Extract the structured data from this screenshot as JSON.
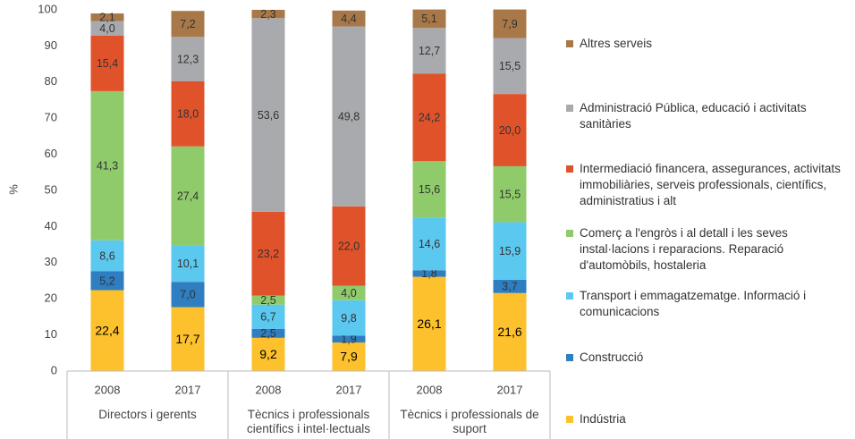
{
  "chart_data": {
    "type": "stacked_bar",
    "y_label": "%",
    "categories": [
      "2008",
      "2017",
      "2008",
      "2017",
      "2008",
      "2017"
    ],
    "groups": [
      "Directors i gerents",
      "Tècnics i professionals científics i intel·lectuals",
      "Tècnics i professionals de suport"
    ],
    "ylim": [
      0,
      100
    ],
    "yticks": [
      0,
      10,
      20,
      30,
      40,
      50,
      60,
      70,
      80,
      90,
      100
    ],
    "grid": false,
    "legend": "right",
    "series": [
      {
        "name": "Indústria",
        "color": "#fcc12d",
        "values": [
          22.4,
          17.7,
          9.2,
          7.9,
          26.1,
          21.6
        ],
        "value_labels": [
          "22,4",
          "17,7",
          "9,2",
          "7,9",
          "26,1",
          "21,6"
        ]
      },
      {
        "name": "Construcció",
        "color": "#2e7ec1",
        "values": [
          5.2,
          7.0,
          2.5,
          1.9,
          1.8,
          3.7
        ],
        "value_labels": [
          "5,2",
          "7,0",
          "2,5",
          "1,9",
          "1,8",
          "3,7"
        ]
      },
      {
        "name": "Transport i emmagatzematge. Informació i comunicacions",
        "color": "#5bc8f0",
        "values": [
          8.6,
          10.1,
          6.7,
          9.8,
          14.6,
          15.9
        ],
        "value_labels": [
          "8,6",
          "10,1",
          "6,7",
          "9,8",
          "14,6",
          "15,9"
        ]
      },
      {
        "name": "Comerç a l'engròs i al detall i les seves instal·lacions i reparacions. Reparació d'automòbils, hostaleria",
        "color": "#8fcb6b",
        "values": [
          41.3,
          27.4,
          2.5,
          4.0,
          15.6,
          15.5
        ],
        "value_labels": [
          "41,3",
          "27,4",
          "2,5",
          "4,0",
          "15,6",
          "15,5"
        ]
      },
      {
        "name": "Intermediació financera, assegurances, activitats immobiliàries, serveis professionals, científics, administratius i alt",
        "color": "#e0522a",
        "values": [
          15.4,
          18.0,
          23.2,
          22.0,
          24.2,
          20.0
        ],
        "value_labels": [
          "15,4",
          "18,0",
          "23,2",
          "22,0",
          "24,2",
          "20,0"
        ]
      },
      {
        "name": "Administració Pública, educació i activitats sanitàries",
        "color": "#a9aaad",
        "values": [
          4.0,
          12.3,
          53.6,
          49.8,
          12.7,
          15.5
        ],
        "value_labels": [
          "4,0",
          "12,3",
          "53,6",
          "49,8",
          "12,7",
          "15,5"
        ]
      },
      {
        "name": "Altres serveis",
        "color": "#a97848",
        "values": [
          2.1,
          7.2,
          2.3,
          4.4,
          5.1,
          7.9
        ],
        "value_labels": [
          "2,1",
          "7,2",
          "2,3",
          "4,4",
          "5,1",
          "7,9"
        ]
      }
    ]
  }
}
